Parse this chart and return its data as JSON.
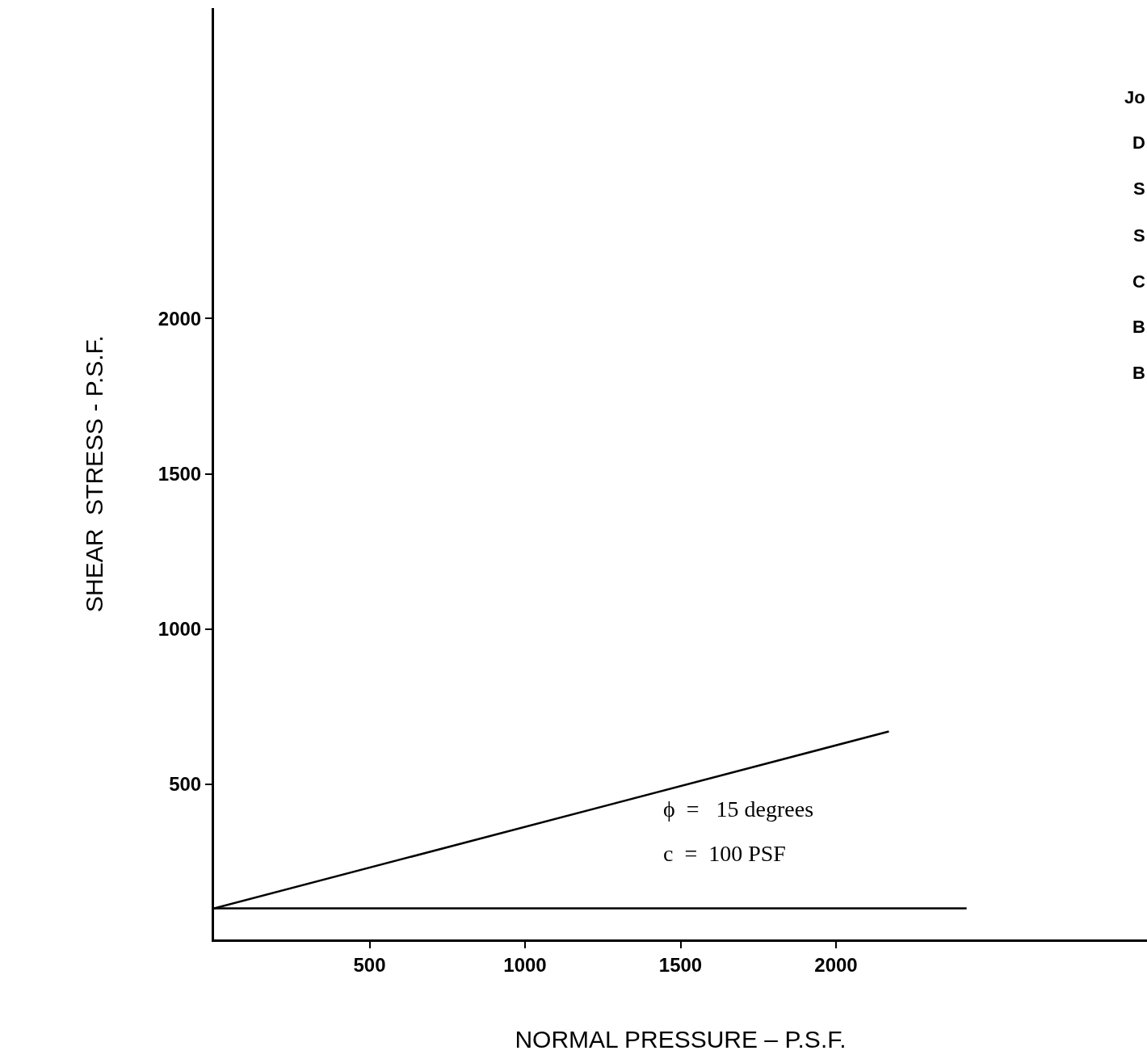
{
  "chart_data": {
    "type": "line",
    "xlabel": "NORMAL PRESSURE – P.S.F.",
    "ylabel": "SHEAR  STRESS - P.S.F.",
    "series": [
      {
        "color": "#000000",
        "x": [
          0,
          2170
        ],
        "values": [
          100,
          670
        ]
      },
      {
        "color": "#000000",
        "x": [
          0,
          2420
        ],
        "values": [
          100,
          100
        ]
      }
    ],
    "xlim": [
      0,
      3000
    ],
    "ylim": [
      0,
      3000
    ],
    "xticks": [
      500,
      1000,
      1500,
      2000
    ],
    "yticks": [
      500,
      1000,
      1500,
      2000
    ],
    "marker": "none",
    "line_style": "solid",
    "annotations": [
      "ϕ  =   15 degrees",
      "c  =  100 PSF",
      "Jo",
      "D",
      "S",
      "S",
      "C",
      "B",
      "B"
    ]
  }
}
